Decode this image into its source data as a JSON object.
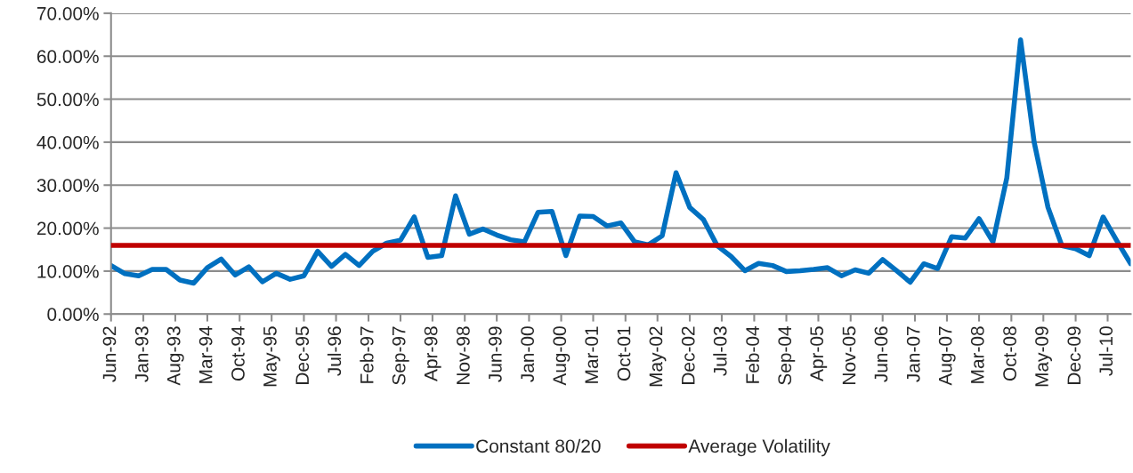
{
  "chart_data": {
    "type": "line",
    "x": [
      "1992-06",
      "1992-09",
      "1992-12",
      "1993-03",
      "1993-06",
      "1993-09",
      "1993-12",
      "1994-03",
      "1994-06",
      "1994-09",
      "1994-12",
      "1995-03",
      "1995-06",
      "1995-09",
      "1995-12",
      "1996-03",
      "1996-06",
      "1996-09",
      "1996-12",
      "1997-03",
      "1997-06",
      "1997-09",
      "1997-12",
      "1998-03",
      "1998-06",
      "1998-09",
      "1998-12",
      "1999-03",
      "1999-06",
      "1999-09",
      "1999-12",
      "2000-03",
      "2000-06",
      "2000-09",
      "2000-12",
      "2001-03",
      "2001-06",
      "2001-09",
      "2001-12",
      "2002-03",
      "2002-06",
      "2002-09",
      "2002-12",
      "2003-03",
      "2003-06",
      "2003-09",
      "2003-12",
      "2004-03",
      "2004-06",
      "2004-09",
      "2004-12",
      "2005-03",
      "2005-06",
      "2005-09",
      "2005-12",
      "2006-03",
      "2006-06",
      "2006-09",
      "2006-12",
      "2007-03",
      "2007-06",
      "2007-09",
      "2007-12",
      "2008-03",
      "2008-06",
      "2008-09",
      "2008-12",
      "2009-03",
      "2009-06",
      "2009-09",
      "2009-12",
      "2010-03",
      "2010-06",
      "2010-09",
      "2010-12"
    ],
    "series": [
      {
        "name": "Constant 80/20",
        "color": "#0070c0",
        "values": [
          11.3,
          9.4,
          8.9,
          10.4,
          10.4,
          7.9,
          7.2,
          10.8,
          12.8,
          9.1,
          11.0,
          7.5,
          9.5,
          8.1,
          8.9,
          14.6,
          11.1,
          13.9,
          11.3,
          14.6,
          16.5,
          17.2,
          22.6,
          13.2,
          13.6,
          27.5,
          18.6,
          19.8,
          18.4,
          17.3,
          16.8,
          23.7,
          23.9,
          13.6,
          22.8,
          22.7,
          20.5,
          21.2,
          16.8,
          16.1,
          18.2,
          32.9,
          24.8,
          22.0,
          15.9,
          13.4,
          10.1,
          11.8,
          11.3,
          9.9,
          10.1,
          10.4,
          10.8,
          8.9,
          10.3,
          9.5,
          12.7,
          10.1,
          7.4,
          11.7,
          10.6,
          18.0,
          17.7,
          22.2,
          16.8,
          31.7,
          63.8,
          40.0,
          24.8,
          15.9,
          15.2,
          13.6,
          22.6,
          17.0,
          11.7
        ]
      }
    ],
    "ref_lines": [
      {
        "axis": "y",
        "value": 16.0,
        "label": "Average Volatility",
        "color": "#c00000"
      }
    ],
    "xlim": [
      "1992-06",
      "2010-12"
    ],
    "xticks": [
      {
        "value": "1992-06",
        "label": "Jun-92"
      },
      {
        "value": "1993-01",
        "label": "Jan-93"
      },
      {
        "value": "1993-08",
        "label": "Aug-93"
      },
      {
        "value": "1994-03",
        "label": "Mar-94"
      },
      {
        "value": "1994-10",
        "label": "Oct-94"
      },
      {
        "value": "1995-05",
        "label": "May-95"
      },
      {
        "value": "1995-12",
        "label": "Dec-95"
      },
      {
        "value": "1996-07",
        "label": "Jul-96"
      },
      {
        "value": "1997-02",
        "label": "Feb-97"
      },
      {
        "value": "1997-09",
        "label": "Sep-97"
      },
      {
        "value": "1998-04",
        "label": "Apr-98"
      },
      {
        "value": "1998-11",
        "label": "Nov-98"
      },
      {
        "value": "1999-06",
        "label": "Jun-99"
      },
      {
        "value": "2000-01",
        "label": "Jan-00"
      },
      {
        "value": "2000-08",
        "label": "Aug-00"
      },
      {
        "value": "2001-03",
        "label": "Mar-01"
      },
      {
        "value": "2001-10",
        "label": "Oct-01"
      },
      {
        "value": "2002-05",
        "label": "May-02"
      },
      {
        "value": "2002-12",
        "label": "Dec-02"
      },
      {
        "value": "2003-07",
        "label": "Jul-03"
      },
      {
        "value": "2004-02",
        "label": "Feb-04"
      },
      {
        "value": "2004-09",
        "label": "Sep-04"
      },
      {
        "value": "2005-04",
        "label": "Apr-05"
      },
      {
        "value": "2005-11",
        "label": "Nov-05"
      },
      {
        "value": "2006-06",
        "label": "Jun-06"
      },
      {
        "value": "2007-01",
        "label": "Jan-07"
      },
      {
        "value": "2007-08",
        "label": "Aug-07"
      },
      {
        "value": "2008-03",
        "label": "Mar-08"
      },
      {
        "value": "2008-10",
        "label": "Oct-08"
      },
      {
        "value": "2009-05",
        "label": "May-09"
      },
      {
        "value": "2009-12",
        "label": "Dec-09"
      },
      {
        "value": "2010-07",
        "label": "Jul-10"
      }
    ],
    "ylim": [
      0,
      70
    ],
    "yticks": [
      {
        "value": 0,
        "label": "0.00%"
      },
      {
        "value": 10,
        "label": "10.00%"
      },
      {
        "value": 20,
        "label": "20.00%"
      },
      {
        "value": 30,
        "label": "30.00%"
      },
      {
        "value": 40,
        "label": "40.00%"
      },
      {
        "value": 50,
        "label": "50.00%"
      },
      {
        "value": 60,
        "label": "60.00%"
      },
      {
        "value": 70,
        "label": "70.00%"
      }
    ],
    "grid": "y",
    "legend": "bottom",
    "marker": "none",
    "line_style": "solid"
  }
}
